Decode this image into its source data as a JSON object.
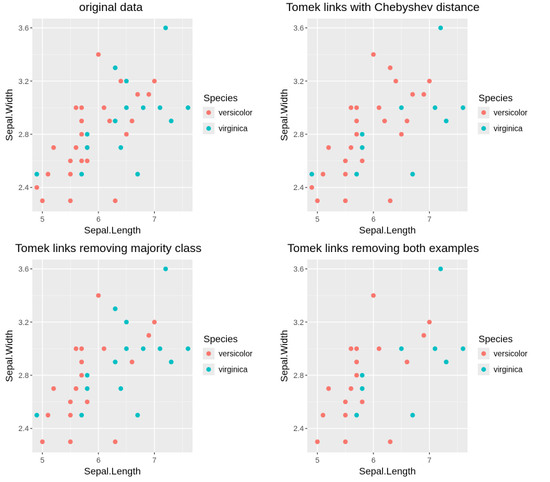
{
  "colors": {
    "panel_bg": "#ebebeb",
    "grid_major": "#ffffff",
    "tick_text": "#4d4d4d",
    "tick_mark": "#333333",
    "versicolor": "#f8766d",
    "virginica": "#00bfc4"
  },
  "legend": {
    "title": "Species",
    "entries": [
      {
        "name": "versicolor",
        "color": "#f8766d"
      },
      {
        "name": "virginica",
        "color": "#00bfc4"
      }
    ]
  },
  "chart_data": [
    {
      "type": "scatter",
      "title": "original data",
      "xlabel": "Sepal.Length",
      "ylabel": "Sepal.Width",
      "xlim": [
        4.82,
        7.68
      ],
      "ylim": [
        2.22,
        3.67
      ],
      "xticks": [
        5,
        6,
        7
      ],
      "yticks": [
        2.4,
        2.8,
        3.2,
        3.6
      ],
      "xtick_labels": [
        "5",
        "6",
        "7"
      ],
      "ytick_labels": [
        "2.4",
        "2.8",
        "3.2",
        "3.6"
      ],
      "series": [
        {
          "name": "versicolor",
          "points": [
            [
              4.9,
              2.4
            ],
            [
              5.0,
              2.3
            ],
            [
              5.2,
              2.7
            ],
            [
              5.1,
              2.5
            ],
            [
              5.5,
              2.3
            ],
            [
              5.5,
              2.5
            ],
            [
              5.5,
              2.6
            ],
            [
              5.6,
              2.7
            ],
            [
              5.6,
              3.0
            ],
            [
              5.7,
              3.0
            ],
            [
              5.7,
              2.9
            ],
            [
              5.7,
              2.8
            ],
            [
              5.7,
              2.6
            ],
            [
              5.8,
              2.7
            ],
            [
              5.8,
              2.6
            ],
            [
              6.0,
              3.4
            ],
            [
              6.1,
              3.0
            ],
            [
              6.2,
              2.9
            ],
            [
              6.3,
              2.3
            ],
            [
              6.4,
              3.2
            ],
            [
              6.5,
              2.8
            ],
            [
              6.6,
              2.9
            ],
            [
              6.7,
              3.1
            ],
            [
              6.9,
              3.1
            ],
            [
              7.0,
              3.2
            ]
          ]
        },
        {
          "name": "virginica",
          "points": [
            [
              4.9,
              2.5
            ],
            [
              5.7,
              2.5
            ],
            [
              5.8,
              2.8
            ],
            [
              5.8,
              2.7
            ],
            [
              6.3,
              3.3
            ],
            [
              6.3,
              2.9
            ],
            [
              6.4,
              2.7
            ],
            [
              6.5,
              3.2
            ],
            [
              6.5,
              3.0
            ],
            [
              6.7,
              2.5
            ],
            [
              6.8,
              3.0
            ],
            [
              7.1,
              3.0
            ],
            [
              7.2,
              3.6
            ],
            [
              7.3,
              2.9
            ],
            [
              7.6,
              3.0
            ]
          ]
        }
      ]
    },
    {
      "type": "scatter",
      "title": "Tomek links with Chebyshev distance",
      "xlabel": "Sepal.Length",
      "ylabel": "Sepal.Width",
      "xlim": [
        4.82,
        7.68
      ],
      "ylim": [
        2.22,
        3.67
      ],
      "xticks": [
        5,
        6,
        7
      ],
      "yticks": [
        2.4,
        2.8,
        3.2,
        3.6
      ],
      "xtick_labels": [
        "5",
        "6",
        "7"
      ],
      "ytick_labels": [
        "2.4",
        "2.8",
        "3.2",
        "3.6"
      ],
      "series": [
        {
          "name": "versicolor",
          "points": [
            [
              4.9,
              2.4
            ],
            [
              5.0,
              2.3
            ],
            [
              5.2,
              2.7
            ],
            [
              5.1,
              2.5
            ],
            [
              5.5,
              2.3
            ],
            [
              5.5,
              2.5
            ],
            [
              5.5,
              2.6
            ],
            [
              5.6,
              2.7
            ],
            [
              5.6,
              3.0
            ],
            [
              5.7,
              3.0
            ],
            [
              5.7,
              2.9
            ],
            [
              5.7,
              2.8
            ],
            [
              5.8,
              2.6
            ],
            [
              6.0,
              3.4
            ],
            [
              6.1,
              3.0
            ],
            [
              6.2,
              2.9
            ],
            [
              6.3,
              2.3
            ],
            [
              6.3,
              3.3
            ],
            [
              6.4,
              3.2
            ],
            [
              6.5,
              2.8
            ],
            [
              6.6,
              2.9
            ],
            [
              6.7,
              3.1
            ],
            [
              6.9,
              3.1
            ],
            [
              7.0,
              3.2
            ]
          ]
        },
        {
          "name": "virginica",
          "points": [
            [
              4.9,
              2.5
            ],
            [
              5.7,
              2.5
            ],
            [
              5.8,
              2.8
            ],
            [
              5.8,
              2.7
            ],
            [
              6.5,
              3.0
            ],
            [
              6.7,
              2.5
            ],
            [
              7.1,
              3.0
            ],
            [
              7.2,
              3.6
            ],
            [
              7.3,
              2.9
            ],
            [
              7.6,
              3.0
            ]
          ]
        }
      ]
    },
    {
      "type": "scatter",
      "title": "Tomek links removing majority class",
      "xlabel": "Sepal.Length",
      "ylabel": "Sepal.Width",
      "xlim": [
        4.82,
        7.68
      ],
      "ylim": [
        2.22,
        3.67
      ],
      "xticks": [
        5,
        6,
        7
      ],
      "yticks": [
        2.4,
        2.8,
        3.2,
        3.6
      ],
      "xtick_labels": [
        "5",
        "6",
        "7"
      ],
      "ytick_labels": [
        "2.4",
        "2.8",
        "3.2",
        "3.6"
      ],
      "series": [
        {
          "name": "versicolor",
          "points": [
            [
              5.0,
              2.3
            ],
            [
              5.2,
              2.7
            ],
            [
              5.1,
              2.5
            ],
            [
              5.5,
              2.3
            ],
            [
              5.5,
              2.5
            ],
            [
              5.5,
              2.6
            ],
            [
              5.6,
              2.7
            ],
            [
              5.6,
              3.0
            ],
            [
              5.7,
              3.0
            ],
            [
              5.7,
              2.9
            ],
            [
              5.7,
              2.8
            ],
            [
              5.8,
              2.6
            ],
            [
              6.0,
              3.4
            ],
            [
              6.1,
              3.0
            ],
            [
              6.3,
              2.3
            ],
            [
              6.6,
              2.9
            ],
            [
              6.9,
              3.1
            ],
            [
              7.0,
              3.2
            ]
          ]
        },
        {
          "name": "virginica",
          "points": [
            [
              4.9,
              2.5
            ],
            [
              5.7,
              2.5
            ],
            [
              5.8,
              2.8
            ],
            [
              5.8,
              2.7
            ],
            [
              6.3,
              3.3
            ],
            [
              6.3,
              2.9
            ],
            [
              6.4,
              2.7
            ],
            [
              6.5,
              3.2
            ],
            [
              6.5,
              3.0
            ],
            [
              6.7,
              2.5
            ],
            [
              6.8,
              3.0
            ],
            [
              7.1,
              3.0
            ],
            [
              7.2,
              3.6
            ],
            [
              7.3,
              2.9
            ],
            [
              7.6,
              3.0
            ]
          ]
        }
      ]
    },
    {
      "type": "scatter",
      "title": "Tomek links removing both examples",
      "xlabel": "Sepal.Length",
      "ylabel": "Sepal.Width",
      "xlim": [
        4.82,
        7.68
      ],
      "ylim": [
        2.22,
        3.67
      ],
      "xticks": [
        5,
        6,
        7
      ],
      "yticks": [
        2.4,
        2.8,
        3.2,
        3.6
      ],
      "xtick_labels": [
        "5",
        "6",
        "7"
      ],
      "ytick_labels": [
        "2.4",
        "2.8",
        "3.2",
        "3.6"
      ],
      "series": [
        {
          "name": "versicolor",
          "points": [
            [
              5.0,
              2.3
            ],
            [
              5.2,
              2.7
            ],
            [
              5.1,
              2.5
            ],
            [
              5.5,
              2.3
            ],
            [
              5.5,
              2.5
            ],
            [
              5.5,
              2.6
            ],
            [
              5.6,
              2.7
            ],
            [
              5.6,
              3.0
            ],
            [
              5.7,
              3.0
            ],
            [
              5.7,
              2.9
            ],
            [
              5.7,
              2.8
            ],
            [
              5.8,
              2.6
            ],
            [
              6.0,
              3.4
            ],
            [
              6.1,
              3.0
            ],
            [
              6.3,
              2.3
            ],
            [
              6.6,
              2.9
            ],
            [
              6.9,
              3.1
            ],
            [
              7.0,
              3.2
            ]
          ]
        },
        {
          "name": "virginica",
          "points": [
            [
              5.7,
              2.5
            ],
            [
              5.8,
              2.8
            ],
            [
              5.8,
              2.7
            ],
            [
              6.5,
              3.0
            ],
            [
              6.7,
              2.5
            ],
            [
              7.1,
              3.0
            ],
            [
              7.2,
              3.6
            ],
            [
              7.3,
              2.9
            ],
            [
              7.6,
              3.0
            ]
          ]
        }
      ]
    }
  ]
}
